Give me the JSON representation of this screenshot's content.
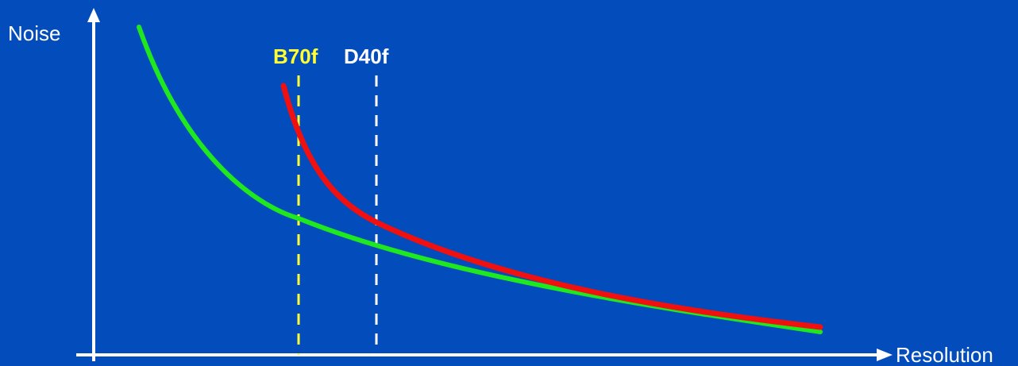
{
  "diagram": {
    "y_axis_label": "Noise",
    "x_axis_label": "Resolution",
    "markers": [
      {
        "label": "B70f",
        "color": "#ffff33"
      },
      {
        "label": "D40f",
        "color": "#ffffff"
      }
    ],
    "curves": [
      {
        "color": "#1fe81f"
      },
      {
        "color": "#f01010"
      }
    ]
  }
}
